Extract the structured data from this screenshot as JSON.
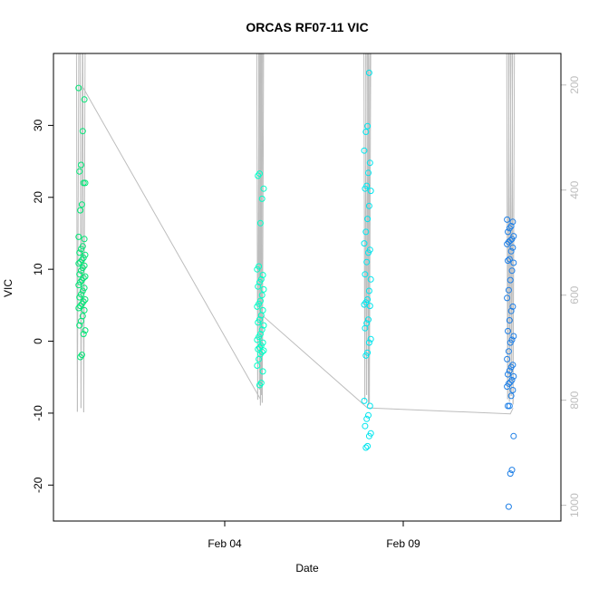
{
  "chart_data": {
    "type": "scatter",
    "title": "ORCAS RF07-11 VIC",
    "xlabel": "Date",
    "ylabel": "VIC",
    "x_ticks": [
      "Feb 04",
      "Feb 09"
    ],
    "ylim": [
      -25,
      40
    ],
    "y_ticks": [
      -20,
      -10,
      0,
      10,
      20,
      30
    ],
    "y2_ticks": [
      200,
      400,
      600,
      800,
      1000
    ],
    "y2lim": [
      1030,
      140
    ],
    "grid": false,
    "legend": "none",
    "colors": {
      "RF07": "#00e676",
      "RF08": "#00ffc8",
      "RF09": "#00e5ee",
      "RF10": "#1e7fe6",
      "pressure_line": "#bdbdbd"
    },
    "series": [
      {
        "flight": "RF07",
        "date": "2016-01-31",
        "values": [
          35.2,
          33.6,
          29.2,
          24.5,
          23.6,
          22.0,
          22.0,
          19.0,
          18.2,
          14.5,
          14.2,
          13.2,
          12.8,
          12.3,
          12.0,
          11.6,
          11.3,
          11.0,
          10.8,
          10.5,
          10.2,
          9.8,
          9.3,
          9.0,
          8.8,
          8.5,
          8.2,
          7.8,
          7.4,
          7.0,
          6.5,
          6.1,
          5.8,
          5.5,
          5.2,
          4.9,
          4.6,
          4.3,
          3.5,
          2.8,
          2.2,
          1.5,
          1.0,
          -1.9,
          -2.2
        ]
      },
      {
        "flight": "RF08",
        "date": "2016-02-05",
        "values": [
          23.3,
          23.0,
          21.2,
          19.8,
          16.4,
          10.4,
          10.0,
          9.2,
          8.6,
          8.2,
          7.6,
          7.2,
          6.4,
          5.6,
          5.2,
          4.8,
          4.3,
          3.6,
          3.0,
          2.6,
          2.2,
          1.6,
          1.0,
          0.6,
          0.2,
          -0.2,
          -0.6,
          -0.9,
          -1.1,
          -1.3,
          -1.5,
          -1.8,
          -2.5,
          -3.4,
          -4.2,
          -5.8,
          -6.1
        ]
      },
      {
        "flight": "RF09",
        "date": "2016-02-08",
        "values": [
          37.3,
          29.9,
          29.1,
          26.5,
          24.8,
          23.4,
          21.6,
          21.2,
          20.9,
          18.8,
          17.0,
          15.2,
          13.6,
          12.7,
          12.3,
          11.0,
          9.3,
          8.6,
          7.0,
          5.8,
          5.4,
          5.1,
          4.9,
          3.0,
          2.5,
          1.8,
          0.3,
          -0.2,
          -1.6,
          -2.0,
          -8.3,
          -9.0,
          -10.3,
          -10.8,
          -11.8,
          -12.8,
          -13.2,
          -14.6,
          -14.8
        ]
      },
      {
        "flight": "RF10",
        "date": "2016-02-12",
        "values": [
          16.9,
          16.6,
          16.0,
          15.7,
          15.2,
          14.6,
          14.2,
          14.0,
          13.8,
          13.5,
          13.0,
          12.5,
          11.4,
          11.2,
          10.9,
          9.8,
          8.5,
          7.1,
          6.0,
          4.8,
          4.2,
          2.9,
          1.4,
          0.7,
          0.2,
          -0.2,
          -1.4,
          -2.5,
          -3.3,
          -3.6,
          -4.1,
          -4.6,
          -4.9,
          -5.4,
          -5.7,
          -5.9,
          -6.3,
          -6.8,
          -7.6,
          -9.0,
          -9.0,
          -13.2,
          -17.9,
          -18.4,
          -23.0
        ]
      }
    ],
    "pressure_trace": {
      "axis": "right",
      "x": [
        "2016-01-31",
        "2016-02-05",
        "2016-02-05",
        "2016-02-08",
        "2016-02-08",
        "2016-02-12",
        "2016-02-12"
      ],
      "values": [
        201,
        798,
        640,
        815,
        815,
        826,
        815
      ]
    }
  }
}
